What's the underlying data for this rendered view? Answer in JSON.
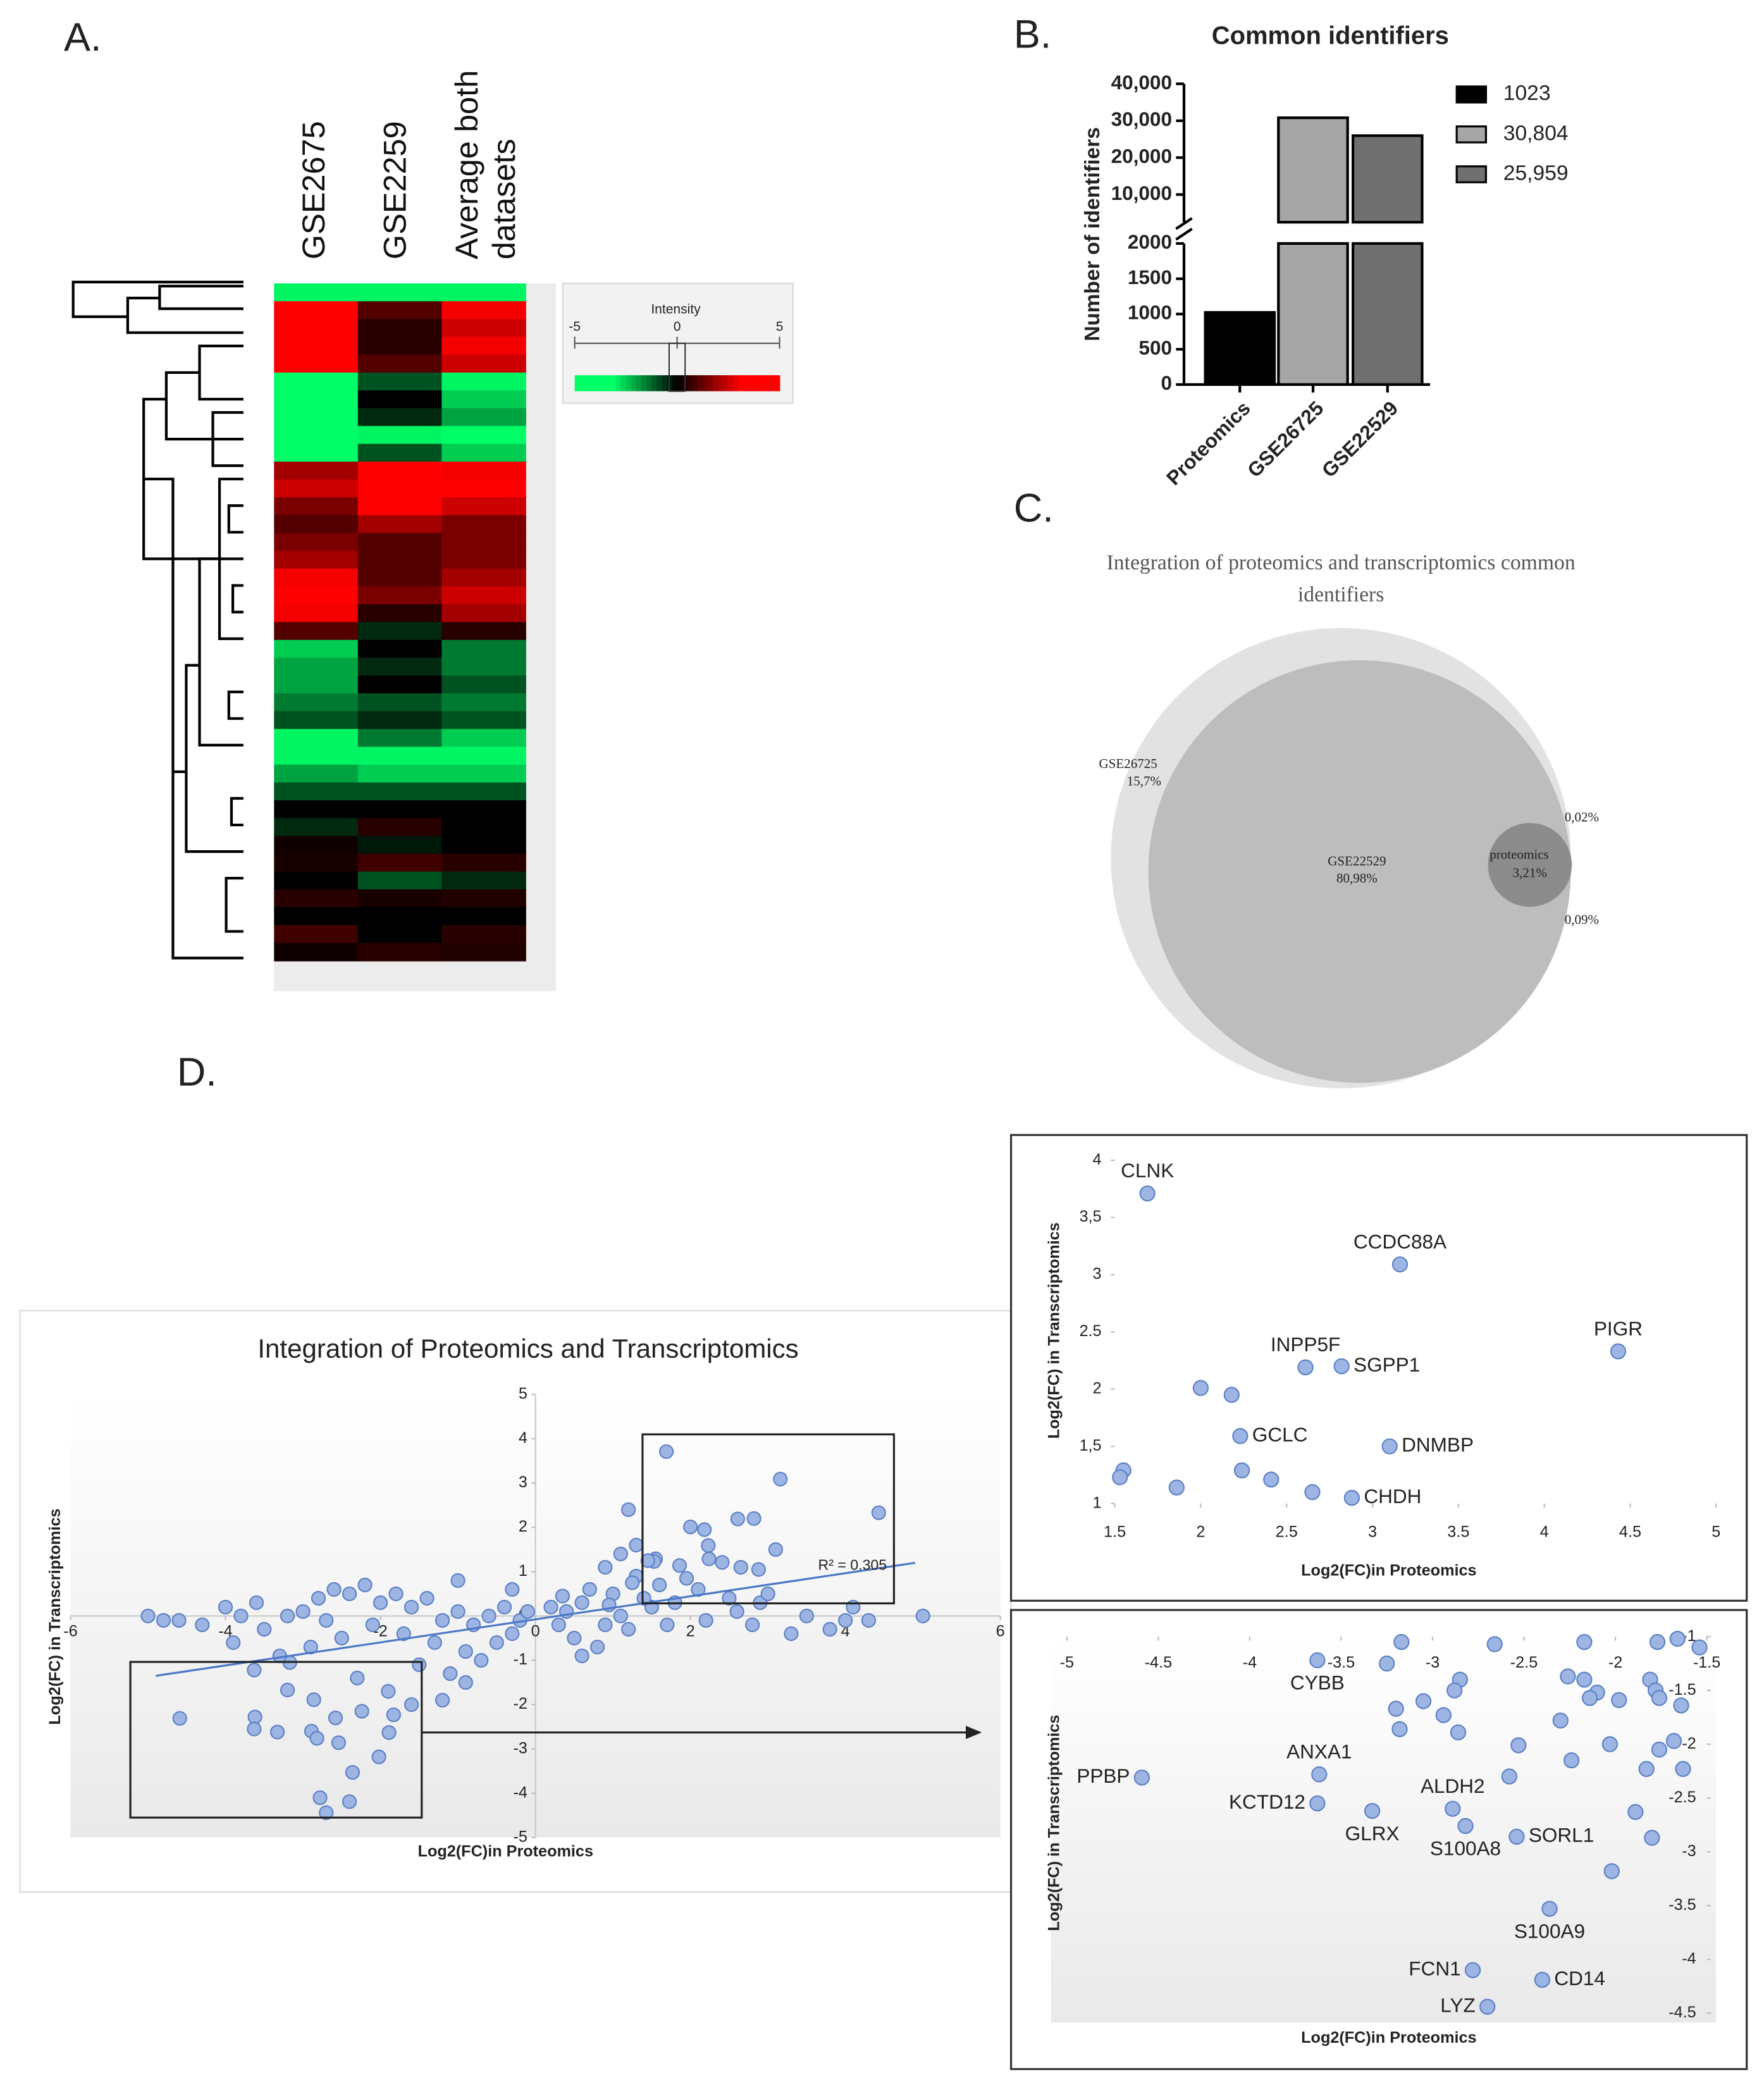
{
  "chart_data": [
    {
      "type": "heatmap",
      "panel": "A.",
      "columns": [
        "GSE2675",
        "GSE2259",
        "Average both datasets"
      ],
      "values": [
        [
          -3,
          -3,
          -3
        ],
        [
          4,
          1,
          3
        ],
        [
          4,
          0.5,
          2.5
        ],
        [
          4,
          0.5,
          3
        ],
        [
          3.5,
          1,
          2.5
        ],
        [
          -4,
          -1,
          -3
        ],
        [
          -4,
          0,
          -2.5
        ],
        [
          -3.5,
          -0.5,
          -2
        ],
        [
          -4,
          -3,
          -4
        ],
        [
          -3.5,
          -1,
          -2.5
        ],
        [
          2,
          4,
          3
        ],
        [
          2.5,
          4,
          3.5
        ],
        [
          1.5,
          3.5,
          2.5
        ],
        [
          1,
          2,
          1.5
        ],
        [
          1.5,
          1,
          1.5
        ],
        [
          2,
          1,
          1.5
        ],
        [
          3,
          1,
          2
        ],
        [
          3.5,
          1.5,
          2.5
        ],
        [
          3,
          0.5,
          2
        ],
        [
          1,
          -0.5,
          0.5
        ],
        [
          -2.5,
          0,
          -1.5
        ],
        [
          -2,
          -0.5,
          -1.5
        ],
        [
          -2,
          0,
          -1
        ],
        [
          -1.5,
          -1,
          -1.5
        ],
        [
          -1,
          -0.5,
          -1
        ],
        [
          -3,
          -1.5,
          -2.5
        ],
        [
          -3,
          -3,
          -3
        ],
        [
          -2,
          -2.5,
          -2.5
        ],
        [
          -1,
          -1,
          -1
        ],
        [
          0,
          0,
          0
        ],
        [
          -0.5,
          0.5,
          0
        ],
        [
          0.2,
          -0.3,
          0
        ],
        [
          0.3,
          0.8,
          0.5
        ],
        [
          0,
          -1,
          -0.5
        ],
        [
          0.5,
          0.3,
          0.4
        ],
        [
          0,
          0,
          0
        ],
        [
          0.8,
          0,
          0.5
        ],
        [
          0.2,
          0.5,
          0.4
        ]
      ],
      "colorbar_title": "Intensity",
      "clim": [
        -5,
        5
      ],
      "cticks": [
        -5,
        0,
        5
      ],
      "colors": {
        "low": "#00ff66",
        "mid": "#000000",
        "high": "#ff0000"
      }
    },
    {
      "type": "bar",
      "panel": "B.",
      "title": "Common identifiers",
      "y_label": "Number of identifiers",
      "categories": [
        "Proteomics",
        "GSE26725",
        "GSE22529"
      ],
      "values": [
        1023,
        30804,
        25959
      ],
      "value_labels": [
        "1023",
        "30,804",
        "25,959"
      ],
      "colors": [
        "#000000",
        "#a6a6a6",
        "#707070"
      ],
      "ylim": [
        0,
        2000
      ],
      "yticks": [
        0,
        500,
        1000,
        1500,
        2000
      ],
      "ylim_upper": [
        2500,
        40000
      ],
      "yticks_upper": [
        {
          "value": 10000,
          "label": "10,000"
        },
        {
          "value": 20000,
          "label": "20,000"
        },
        {
          "value": 30000,
          "label": "30,000"
        },
        {
          "value": 40000,
          "label": "40,000"
        }
      ],
      "legend": "right"
    },
    {
      "type": "venn",
      "panel": "C.",
      "title": "Integration of proteomics and transcriptomics common identifiers",
      "sets": [
        {
          "name": "GSE26725",
          "value": 15.7,
          "value_label": "15,7%",
          "color": "#e2e2e2"
        },
        {
          "name": "GSE22529",
          "value": 80.98,
          "value_label": "80,98%",
          "color": "#bdbdbd"
        },
        {
          "name": "proteomics",
          "value": 3.21,
          "value_label": "3,21%",
          "color": "#8c8c8c"
        }
      ],
      "overlaps": [
        {
          "value": 0.02,
          "label": "0,02%"
        },
        {
          "value": 0.09,
          "label": "0,09%"
        }
      ]
    },
    {
      "type": "scatter",
      "panel": "D.",
      "title": "Integration of Proteomics and Transcriptomics",
      "x_label": "Log2(FC)in Proteomics",
      "y_label": "Log2(FC) in Transcriptomics",
      "x": [
        1.69,
        3.16,
        4.43,
        2.61,
        2.82,
        2.23,
        3.1,
        2.88,
        1.55,
        1.53,
        1.86,
        2.0,
        2.18,
        2.24,
        2.41,
        2.65,
        1.2,
        1.1,
        1.3,
        0.9,
        1.6,
        2.1,
        2.5,
        2.9,
        3.5,
        4.0,
        5.0,
        3.3,
        4.1,
        1.0,
        0.6,
        0.4,
        0.3,
        0.5,
        0.8,
        1.2,
        1.5,
        1.8,
        2.2,
        0.7,
        1.1,
        0.9,
        1.4,
        1.7,
        2.6,
        0.2,
        0.35,
        1.25,
        1.95,
        2.8,
        3.0,
        3.8,
        4.3,
        0.6,
        1.3,
        1.45,
        0.95,
        -4.59,
        -3.63,
        -3.62,
        -3.63,
        -3.33,
        -2.89,
        -2.82,
        -2.54,
        -2.36,
        -2.78,
        -2.4,
        -2.7,
        -3.17,
        -3.2,
        -2.86,
        -2.58,
        -2.24,
        -1.83,
        -1.89,
        -2.02,
        -5.0,
        -4.8,
        -4.6,
        -4.0,
        -3.8,
        -3.5,
        -3.2,
        -3.0,
        -2.8,
        -2.6,
        -2.4,
        -2.2,
        -2.0,
        -1.8,
        -1.6,
        -1.4,
        -1.2,
        -1.0,
        -0.8,
        -0.6,
        -0.4,
        -0.3,
        -0.2,
        -0.1,
        -0.5,
        -0.9,
        -1.3,
        -1.7,
        -2.1,
        -2.5,
        -2.9,
        -3.3,
        -3.9,
        -1.5,
        -1.1,
        -0.7,
        -2.3,
        -1.9,
        -1.6,
        -1.2,
        -0.9,
        -2.7,
        -3.6,
        -4.3,
        -1.0,
        -0.3
      ],
      "values": [
        3.71,
        3.09,
        2.33,
        2.19,
        2.2,
        1.59,
        1.5,
        1.05,
        1.29,
        1.23,
        1.14,
        2.01,
        1.95,
        1.29,
        1.21,
        1.1,
        2.4,
        1.4,
        0.9,
        1.1,
        0.7,
        0.6,
        0.4,
        0.3,
        0.0,
        -0.1,
        0.0,
        -0.4,
        0.2,
        0.5,
        0.3,
        0.1,
        -0.2,
        -0.5,
        -0.7,
        -0.3,
        0.2,
        0.3,
        -0.1,
        0.6,
        0.0,
        -0.2,
        0.4,
        -0.2,
        0.1,
        0.2,
        0.45,
        0.75,
        0.85,
        -0.2,
        0.5,
        -0.3,
        -0.1,
        -0.9,
        1.6,
        1.25,
        0.25,
        -2.31,
        -1.22,
        -2.28,
        -2.55,
        -2.62,
        -2.6,
        -2.76,
        -2.86,
        -3.53,
        -4.1,
        -4.19,
        -4.44,
        -1.05,
        -1.67,
        -1.89,
        -2.3,
        -2.15,
        -2.23,
        -2.63,
        -3.18,
        0.0,
        -0.1,
        -0.1,
        0.2,
        0.0,
        -0.3,
        0.0,
        0.1,
        0.4,
        0.6,
        0.5,
        0.7,
        0.3,
        0.5,
        0.2,
        0.4,
        -0.1,
        0.1,
        -0.2,
        0.0,
        0.2,
        -0.4,
        -0.1,
        0.1,
        -0.6,
        -0.8,
        -0.6,
        -0.4,
        -0.2,
        -0.5,
        -0.7,
        -0.9,
        -0.6,
        -1.1,
        -1.3,
        -1.0,
        -1.4,
        -1.7,
        -2.0,
        -1.9,
        -1.5,
        -0.1,
        0.3,
        -0.2,
        0.8,
        0.6
      ],
      "color": "#9db5e3",
      "trendline": {
        "x": [
          -4.9,
          4.9
        ],
        "values": [
          -1.35,
          1.2
        ],
        "label": "R² = 0.305",
        "color": "#4a78c8"
      },
      "xlim": [
        -6,
        6
      ],
      "xticks": [
        -6,
        -4,
        -2,
        0,
        2,
        4,
        6
      ],
      "ylim": [
        -5,
        5
      ],
      "yticks": [
        -5,
        -4,
        -3,
        -2,
        -1,
        0,
        1,
        2,
        3,
        4,
        5
      ]
    },
    {
      "type": "scatter",
      "x_label": "Log2(FC)in Proteomics",
      "y_label": "Log2(FC) in Transcriptomics",
      "x": [
        1.69,
        3.16,
        4.43,
        2.61,
        2.82,
        2.23,
        3.1,
        2.88,
        1.55,
        1.53,
        1.86,
        2.0,
        2.18,
        2.24,
        2.41,
        2.65
      ],
      "values": [
        3.71,
        3.09,
        2.33,
        2.19,
        2.2,
        1.59,
        1.5,
        1.05,
        1.29,
        1.23,
        1.14,
        2.01,
        1.95,
        1.29,
        1.21,
        1.1
      ],
      "point_labels": [
        "CLNK",
        "CCDC88A",
        "PIGR",
        "INPP5F",
        "SGPP1",
        "GCLC",
        "DNMBP",
        "CHDH",
        null,
        null,
        null,
        null,
        null,
        null,
        null,
        null
      ],
      "color": "#9db5e3",
      "xlim": [
        1.5,
        5
      ],
      "xticks": [
        1.5,
        2,
        2.5,
        3,
        3.5,
        4,
        4.5,
        5
      ],
      "ylim": [
        1,
        4
      ],
      "yticks": [
        1,
        {
          "value": 1.5,
          "label": "1,5"
        },
        2,
        2.5,
        3,
        {
          "value": 3.5,
          "label": "3,5"
        },
        4
      ]
    },
    {
      "type": "scatter",
      "x_label": "Log2(FC)in Proteomics",
      "y_label": "Log2(FC) in Transcriptomics",
      "x": [
        -4.59,
        -3.63,
        -3.62,
        -3.63,
        -3.33,
        -2.89,
        -2.82,
        -2.54,
        -2.36,
        -2.78,
        -2.4,
        -2.7,
        -3.17,
        -3.25,
        -2.85,
        -2.88,
        -3.2,
        -3.05,
        -2.94,
        -3.18,
        -2.86,
        -2.66,
        -2.17,
        -2.26,
        -2.17,
        -2.1,
        -2.14,
        -1.98,
        -1.81,
        -1.78,
        -1.76,
        -1.64,
        -1.77,
        -1.66,
        -1.54,
        -2.3,
        -2.53,
        -2.58,
        -2.24,
        -2.03,
        -1.83,
        -1.76,
        -1.68,
        -1.63,
        -1.89,
        -1.8,
        -2.02
      ],
      "values": [
        -2.31,
        -1.22,
        -2.28,
        -2.55,
        -2.62,
        -2.6,
        -2.76,
        -2.86,
        -3.53,
        -4.1,
        -4.19,
        -4.44,
        -1.05,
        -1.25,
        -1.4,
        -1.5,
        -1.67,
        -1.6,
        -1.73,
        -1.86,
        -1.89,
        -1.07,
        -1.05,
        -1.37,
        -1.4,
        -1.52,
        -1.57,
        -1.59,
        -1.4,
        -1.5,
        -1.57,
        -1.64,
        -1.05,
        -1.02,
        -1.1,
        -1.78,
        -2.01,
        -2.3,
        -2.15,
        -2.0,
        -2.23,
        -2.05,
        -1.97,
        -2.23,
        -2.63,
        -2.87,
        -3.18
      ],
      "point_labels": [
        "PPBP",
        "CYBB",
        "ANXA1",
        "KCTD12",
        "GLRX",
        "ALDH2",
        "S100A8",
        "SORL1",
        "S100A9",
        "FCN1",
        "CD14",
        "LYZ",
        null,
        null,
        null,
        null,
        null,
        null,
        null,
        null,
        null,
        null,
        null,
        null,
        null,
        null,
        null,
        null,
        null,
        null,
        null,
        null,
        null,
        null,
        null,
        null,
        null,
        null,
        null,
        null,
        null,
        null,
        null,
        null,
        null,
        null,
        null
      ],
      "color": "#9db5e3",
      "xlim": [
        -5,
        -1.5
      ],
      "xticks": [
        -5,
        -4.5,
        -4,
        -3.5,
        -3,
        -2.5,
        -2,
        -1.5
      ],
      "ylim": [
        -4.5,
        -1
      ],
      "yticks": [
        -1,
        -1.5,
        -2,
        -2.5,
        -3,
        -3.5,
        -4,
        -4.5
      ]
    }
  ]
}
